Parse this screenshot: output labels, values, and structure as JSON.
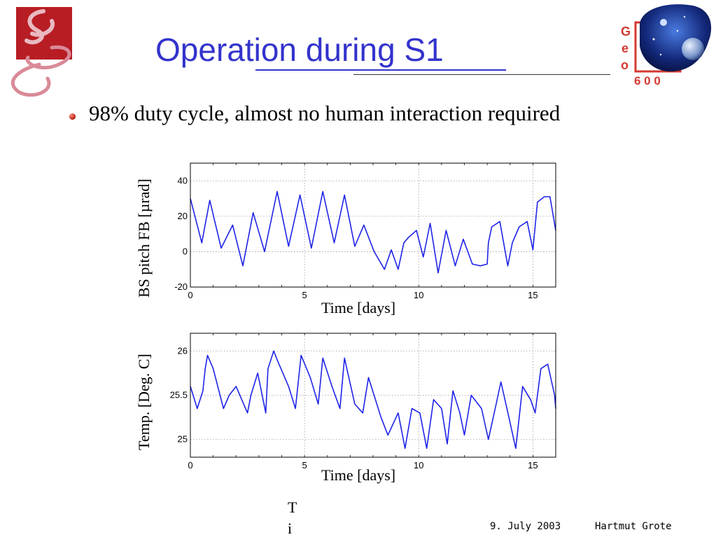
{
  "slide": {
    "title": "Operation during S1",
    "bullet": "98% duty cycle, almost no human interaction required",
    "footer_date": "9. July 2003",
    "footer_author": "Hartmut Grote",
    "stray_text_1": "T",
    "stray_text_2": "i"
  },
  "logos": {
    "left": {
      "icon": "aei-logo-icon"
    },
    "right": {
      "icon": "geo600-logo-icon",
      "letters": [
        "G",
        "e",
        "o"
      ],
      "number": "6 0 0"
    }
  },
  "colors": {
    "title": "#3333cc",
    "trace": "#1f24e6",
    "grid": "#9a9a9a"
  },
  "chart_data": [
    {
      "type": "line",
      "title": "",
      "xlabel": "Time [days]",
      "ylabel": "BS pitch FB [µrad]",
      "xlim": [
        0,
        16
      ],
      "ylim": [
        -20,
        50
      ],
      "xticks": [
        0,
        5,
        10,
        15
      ],
      "yticks": [
        -20,
        0,
        20,
        40
      ],
      "grid": true,
      "series": [
        {
          "x": [
            0,
            0.5,
            0.85,
            1.35,
            1.85,
            2.3,
            2.75,
            3.25,
            3.8,
            4.3,
            4.8,
            5.3,
            5.8,
            6.3,
            6.75,
            7.2,
            7.6,
            8.05,
            8.5,
            8.8,
            9.1,
            9.35,
            9.55,
            9.9,
            10.2,
            10.5,
            10.85,
            11.2,
            11.6,
            11.95,
            12.35,
            12.7,
            13.0,
            13.05,
            13.2,
            13.55,
            13.9,
            14.1,
            14.4,
            14.75,
            15.0,
            15.2,
            15.5,
            15.75,
            16.0
          ],
          "y": [
            30,
            5,
            29,
            2,
            15,
            -8,
            22,
            0,
            34,
            3,
            32,
            2,
            34,
            5,
            32,
            3,
            15,
            0,
            -10,
            1,
            -10,
            5,
            8,
            12,
            -3,
            16,
            -12,
            12,
            -8,
            7,
            -7,
            -8,
            -7,
            5,
            14,
            17,
            -8,
            5,
            14,
            17,
            1,
            28,
            31,
            31,
            12
          ]
        }
      ]
    },
    {
      "type": "line",
      "title": "",
      "xlabel": "Time [days]",
      "ylabel": "Temp. [Deg. C]",
      "xlim": [
        0,
        16
      ],
      "ylim": [
        24.8,
        26.2
      ],
      "xticks": [
        0,
        5,
        10,
        15
      ],
      "yticks": [
        25,
        25.5,
        26
      ],
      "grid": true,
      "series": [
        {
          "x": [
            0,
            0.3,
            0.55,
            0.65,
            0.75,
            1.0,
            1.45,
            1.7,
            2.0,
            2.5,
            2.65,
            2.95,
            3.3,
            3.4,
            3.65,
            3.8,
            4.3,
            4.6,
            4.85,
            5.25,
            5.6,
            5.8,
            6.2,
            6.55,
            6.75,
            7.2,
            7.55,
            7.8,
            8.35,
            8.65,
            9.1,
            9.4,
            9.7,
            10.05,
            10.35,
            10.65,
            11.0,
            11.25,
            11.5,
            11.8,
            12.0,
            12.3,
            12.75,
            13.05,
            13.35,
            13.6,
            13.95,
            14.25,
            14.55,
            14.9,
            15.1,
            15.35,
            15.65,
            15.95,
            16.0
          ],
          "y": [
            25.6,
            25.35,
            25.55,
            25.8,
            25.95,
            25.8,
            25.35,
            25.5,
            25.6,
            25.3,
            25.5,
            25.75,
            25.3,
            25.8,
            26.0,
            25.9,
            25.6,
            25.35,
            25.95,
            25.7,
            25.4,
            25.92,
            25.6,
            25.35,
            25.92,
            25.4,
            25.3,
            25.7,
            25.25,
            25.05,
            25.3,
            24.9,
            25.35,
            25.3,
            24.9,
            25.45,
            25.35,
            24.95,
            25.55,
            25.3,
            25.05,
            25.5,
            25.35,
            25.0,
            25.35,
            25.65,
            25.25,
            24.9,
            25.6,
            25.45,
            25.3,
            25.8,
            25.85,
            25.5,
            25.35
          ]
        }
      ]
    }
  ]
}
